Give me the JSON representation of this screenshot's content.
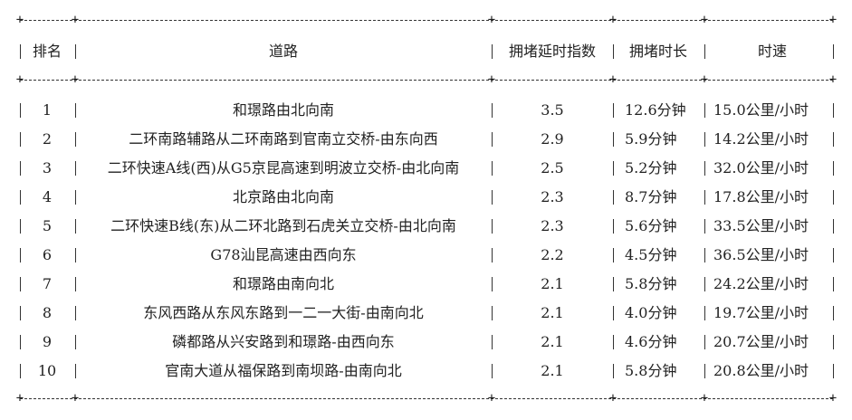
{
  "table": {
    "headers": {
      "rank": "排名",
      "road": "道路",
      "index": "拥堵延时指数",
      "duration": "拥堵时长",
      "speed": "时速"
    },
    "rows": [
      {
        "rank": "1",
        "road": "和璟路由北向南",
        "index": "3.5",
        "duration": "12.6分钟",
        "speed": "15.0公里/小时"
      },
      {
        "rank": "2",
        "road": "二环南路辅路从二环南路到官南立交桥-由东向西",
        "index": "2.9",
        "duration": "5.9分钟",
        "speed": "14.2公里/小时"
      },
      {
        "rank": "3",
        "road": "二环快速A线(西)从G5京昆高速到明波立交桥-由北向南",
        "index": "2.5",
        "duration": "5.2分钟",
        "speed": "32.0公里/小时"
      },
      {
        "rank": "4",
        "road": "北京路由北向南",
        "index": "2.3",
        "duration": "8.7分钟",
        "speed": "17.8公里/小时"
      },
      {
        "rank": "5",
        "road": "二环快速B线(东)从二环北路到石虎关立交桥-由北向南",
        "index": "2.3",
        "duration": "5.6分钟",
        "speed": "33.5公里/小时"
      },
      {
        "rank": "6",
        "road": "G78汕昆高速由西向东",
        "index": "2.2",
        "duration": "4.5分钟",
        "speed": "36.5公里/小时"
      },
      {
        "rank": "7",
        "road": "和璟路由南向北",
        "index": "2.1",
        "duration": "5.8分钟",
        "speed": "24.2公里/小时"
      },
      {
        "rank": "8",
        "road": "东风西路从东风东路到一二一大街-由南向北",
        "index": "2.1",
        "duration": "4.0分钟",
        "speed": "19.7公里/小时"
      },
      {
        "rank": "9",
        "road": "磷都路从兴安路到和璟路-由西向东",
        "index": "2.1",
        "duration": "4.6分钟",
        "speed": "20.7公里/小时"
      },
      {
        "rank": "10",
        "road": "官南大道从福保路到南坝路-由南向北",
        "index": "2.1",
        "duration": "5.8分钟",
        "speed": "20.8公里/小时"
      }
    ]
  }
}
